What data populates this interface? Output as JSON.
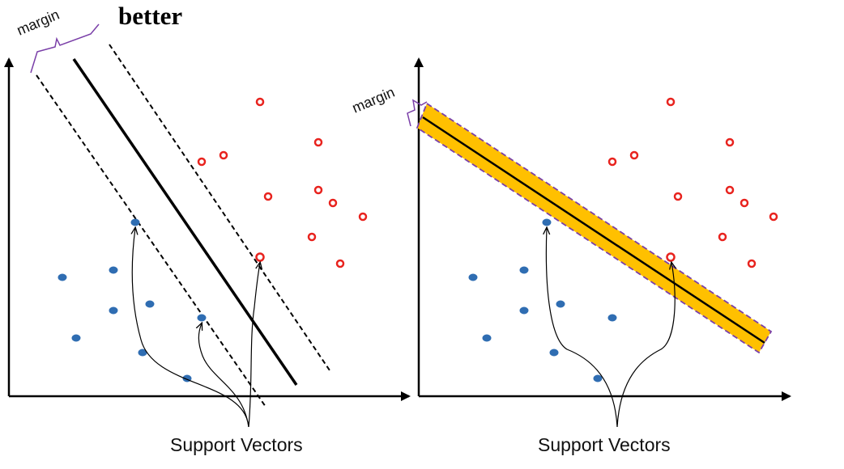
{
  "heading": "better",
  "panels": [
    {
      "id": "left",
      "margin_label": "margin",
      "caption": "Support Vectors",
      "point_style": {
        "negative": "#2f6db2",
        "positive": "#e8231e"
      }
    },
    {
      "id": "right",
      "margin_label": "margin",
      "caption": "Support Vectors",
      "margin_fill": "#ffc000",
      "margin_border": "#7a3fa8"
    }
  ],
  "colors": {
    "axis": "#000000",
    "negative_point": "#2f6db2",
    "positive_point": "#e8231e",
    "brace": "#7a3fa8",
    "margin_band": "#ffc000"
  }
}
